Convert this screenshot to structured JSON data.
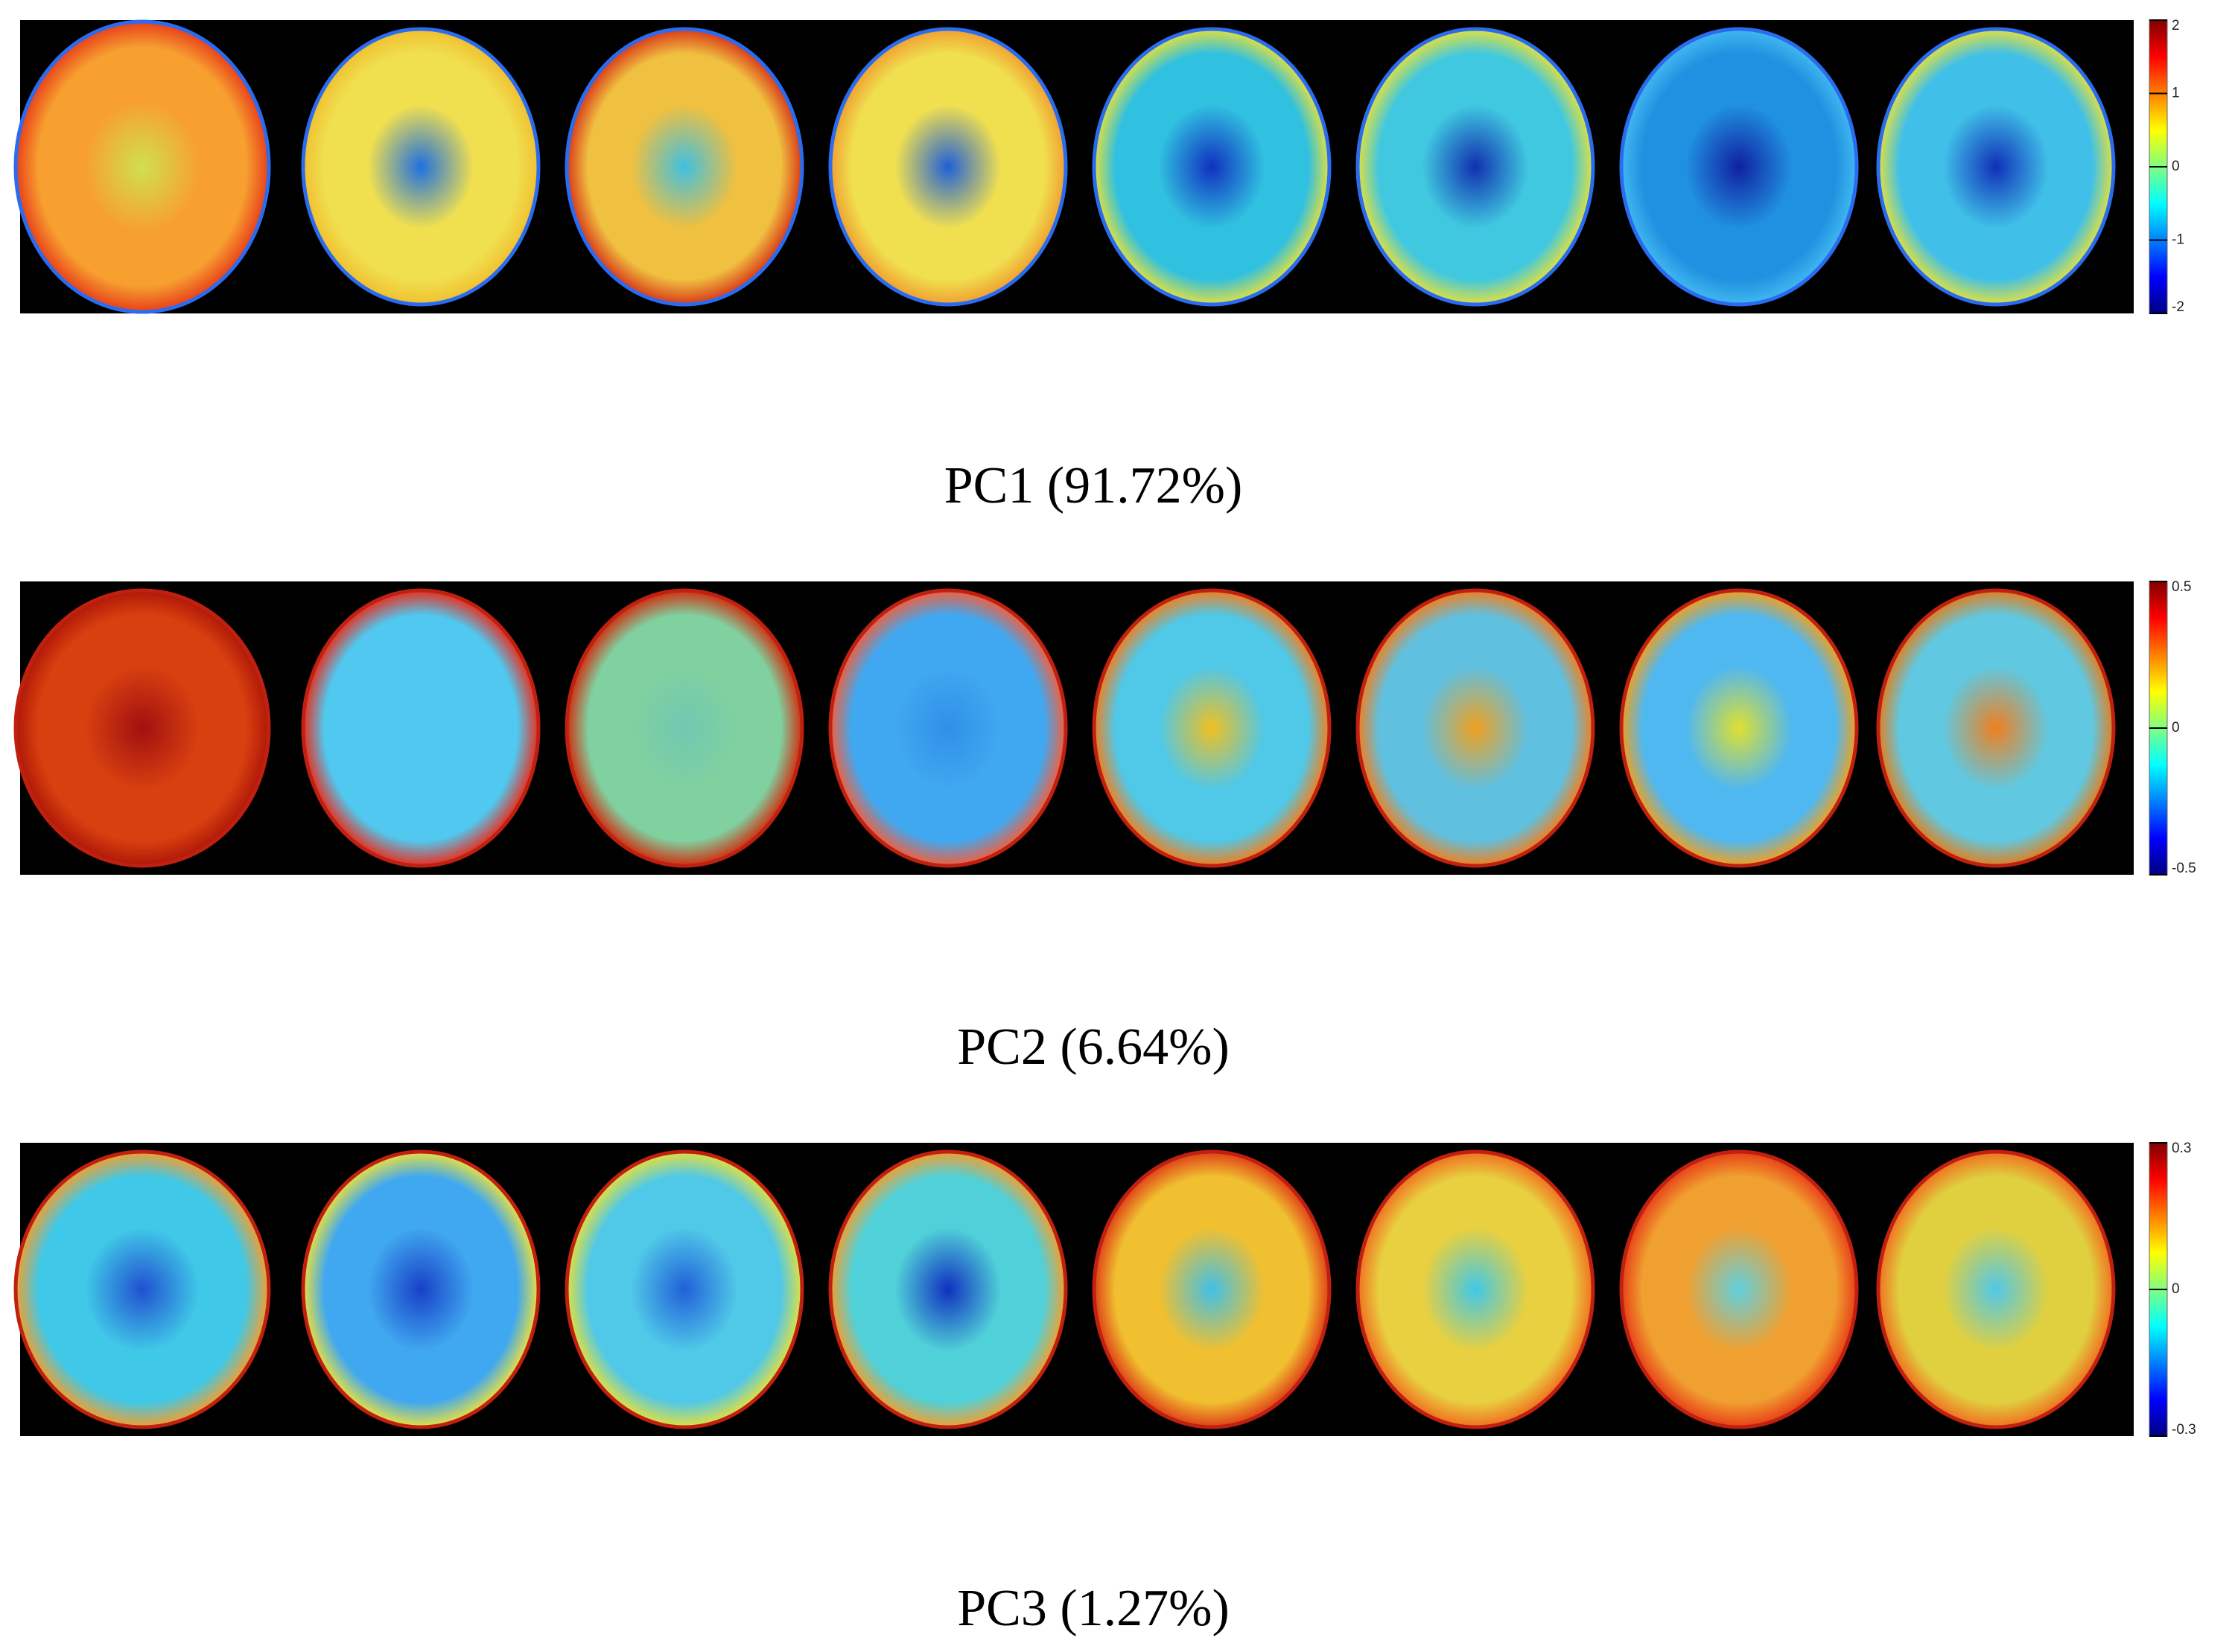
{
  "panels": [
    {
      "caption": "PC1 (91.72%)",
      "colorbar": {
        "lim": [
          -2,
          2
        ],
        "ticks": [
          2,
          1,
          0,
          -1,
          -2
        ]
      }
    },
    {
      "caption": "PC2 (6.64%)",
      "colorbar": {
        "lim": [
          -0.5,
          0.5
        ],
        "ticks": [
          0.5,
          0,
          -0.5
        ]
      }
    },
    {
      "caption": "PC3 (1.27%)",
      "colorbar": {
        "lim": [
          -0.3,
          0.3
        ],
        "ticks": [
          0.3,
          0,
          -0.3
        ]
      }
    }
  ]
}
